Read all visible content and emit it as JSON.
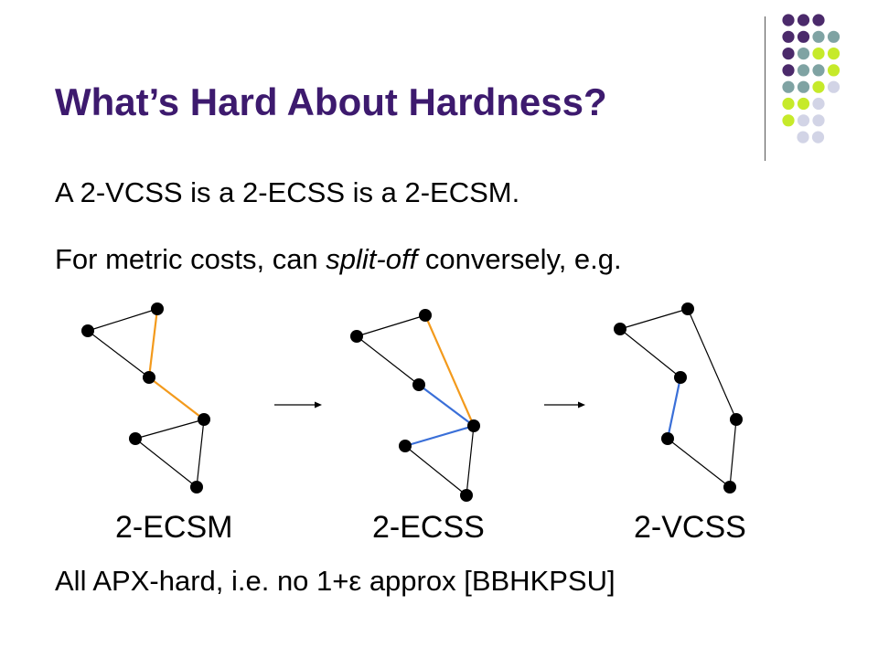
{
  "slide": {
    "title": "What’s Hard About Hardness?",
    "line1": "A 2-VCSS is a 2-ECSS is a 2-ECSM.",
    "line2_before": "For metric costs, can ",
    "line2_italic": "split-off",
    "line2_after": " conversely,  e.g.",
    "line3": "All APX-hard, i.e. no 1+ε approx [BBHKPSU]"
  },
  "colors": {
    "title": "#3d1a6e",
    "node": "#000000",
    "edge": "#000000",
    "orange_edge": "#f39a1c",
    "blue_edge": "#3a6fd8",
    "dot_purple": "#4b2a6b",
    "dot_teal": "#7fa3a3",
    "dot_lime": "#c6ea2a",
    "dot_lavender": "#d2d4e6"
  },
  "diagrams": [
    {
      "label": "2-ECSM",
      "nodes": [
        "a",
        "b",
        "c",
        "d",
        "e",
        "f"
      ],
      "edges": [
        {
          "from": "a",
          "to": "b",
          "color": "edge"
        },
        {
          "from": "a",
          "to": "c",
          "color": "edge"
        },
        {
          "from": "b",
          "to": "c",
          "color": "orange_edge"
        },
        {
          "from": "c",
          "to": "d",
          "color": "orange_edge"
        },
        {
          "from": "e",
          "to": "d",
          "color": "edge"
        },
        {
          "from": "e",
          "to": "f",
          "color": "edge"
        },
        {
          "from": "d",
          "to": "f",
          "color": "edge"
        }
      ]
    },
    {
      "label": "2-ECSS",
      "nodes": [
        "a",
        "b",
        "c",
        "d",
        "e",
        "f"
      ],
      "edges": [
        {
          "from": "a",
          "to": "b",
          "color": "edge"
        },
        {
          "from": "a",
          "to": "c",
          "color": "edge"
        },
        {
          "from": "b",
          "to": "d",
          "color": "orange_edge"
        },
        {
          "from": "c",
          "to": "d",
          "color": "blue_edge"
        },
        {
          "from": "e",
          "to": "d",
          "color": "blue_edge"
        },
        {
          "from": "e",
          "to": "f",
          "color": "edge"
        },
        {
          "from": "d",
          "to": "f",
          "color": "edge"
        }
      ]
    },
    {
      "label": "2-VCSS",
      "nodes": [
        "a",
        "b",
        "c",
        "d",
        "e",
        "f"
      ],
      "edges": [
        {
          "from": "a",
          "to": "b",
          "color": "edge"
        },
        {
          "from": "a",
          "to": "c",
          "color": "edge"
        },
        {
          "from": "b",
          "to": "d",
          "color": "edge"
        },
        {
          "from": "c",
          "to": "e",
          "color": "blue_edge"
        },
        {
          "from": "e",
          "to": "f",
          "color": "edge"
        },
        {
          "from": "d",
          "to": "f",
          "color": "edge"
        }
      ]
    }
  ],
  "arrows": [
    {
      "from_diagram": "2-ECSM",
      "to_diagram": "2-ECSS"
    },
    {
      "from_diagram": "2-ECSS",
      "to_diagram": "2-VCSS"
    }
  ],
  "decoration": {
    "dot_grid": [
      [
        "dot_purple",
        "dot_purple",
        "dot_purple"
      ],
      [
        "dot_purple",
        "dot_purple",
        "dot_teal",
        "dot_teal"
      ],
      [
        "dot_purple",
        "dot_teal",
        "dot_lime",
        "dot_lime"
      ],
      [
        "dot_purple",
        "dot_teal",
        "dot_teal",
        "dot_lime"
      ],
      [
        "dot_teal",
        "dot_teal",
        "dot_lime",
        "dot_lavender"
      ],
      [
        "dot_lime",
        "dot_lime",
        "dot_lavender"
      ],
      [
        "dot_lime",
        "dot_lavender",
        "dot_lavender"
      ],
      [
        "dot_lavender",
        "dot_lavender"
      ]
    ]
  }
}
